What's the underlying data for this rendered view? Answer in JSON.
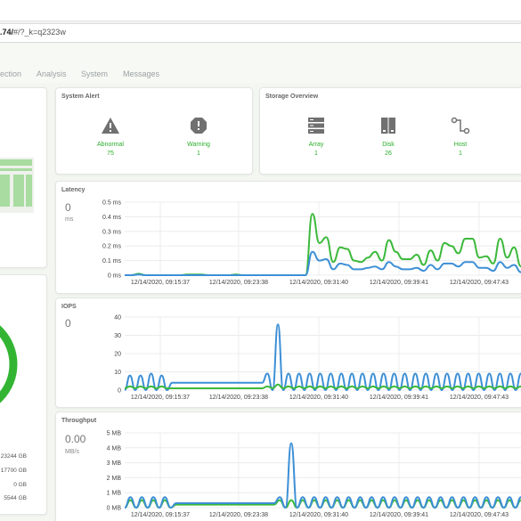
{
  "browser": {
    "url_bold": ".74/",
    "url_rest": "#/?_k=q2323w"
  },
  "nav": {
    "items": [
      "ection",
      "Analysis",
      "System",
      "Messages"
    ]
  },
  "system_alert": {
    "title": "System Alert",
    "items": [
      {
        "label": "Abnormal",
        "value": "75",
        "icon": "warning-triangle-icon"
      },
      {
        "label": "Warning",
        "value": "1",
        "icon": "alert-circle-icon"
      }
    ]
  },
  "storage_overview": {
    "title": "Storage Overview",
    "items": [
      {
        "label": "Array",
        "value": "1",
        "icon": "array-icon"
      },
      {
        "label": "Disk",
        "value": "26",
        "icon": "disk-icon"
      },
      {
        "label": "Host",
        "value": "1",
        "icon": "host-icon"
      }
    ]
  },
  "capacity": {
    "rows": [
      "23244 GB",
      "17700 GB",
      "0 GB",
      "5544 GB"
    ]
  },
  "colors": {
    "green": "#3cb93c",
    "blue": "#3d8fd6",
    "accent": "#2aae2a"
  },
  "latency": {
    "title": "Latency",
    "value": "0",
    "unit": "ms",
    "chart_data": {
      "type": "line",
      "y_ticks": [
        "0.5 ms",
        "0.4 ms",
        "0.3 ms",
        "0.2 ms",
        "0.1 ms",
        "0 ms"
      ],
      "ylim": [
        0,
        0.5
      ],
      "x_ticks": [
        "12/14/2020, 09:15:37",
        "12/14/2020, 09:23:38",
        "12/14/2020, 09:31:40",
        "12/14/2020, 09:39:41",
        "12/14/2020, 09:47:43"
      ],
      "series": [
        {
          "color": "#3cb93c",
          "values": [
            0,
            0,
            0.01,
            0,
            0,
            0,
            0,
            0,
            0,
            0.005,
            0.005,
            0.005,
            0,
            0,
            0,
            0,
            0.005,
            0,
            0,
            0,
            0,
            0,
            0,
            0,
            0,
            0,
            0,
            0.42,
            0.22,
            0.26,
            0.09,
            0.19,
            0.18,
            0.1,
            0.09,
            0.12,
            0.16,
            0.1,
            0.24,
            0.16,
            0.11,
            0.11,
            0.14,
            0.07,
            0.17,
            0.1,
            0.22,
            0.2,
            0.15,
            0.25,
            0.25,
            0.12,
            0.13,
            0.08,
            0.25,
            0.12,
            0.19,
            0.06
          ]
        },
        {
          "color": "#3d8fd6",
          "values": [
            0,
            0,
            0.005,
            0,
            0,
            0,
            0,
            0,
            0,
            0,
            0,
            0,
            0,
            0,
            0,
            0,
            0,
            0,
            0,
            0,
            0,
            0,
            0,
            0,
            0,
            0,
            0,
            0.16,
            0.1,
            0.11,
            0.04,
            0.08,
            0.07,
            0.04,
            0.04,
            0.05,
            0.06,
            0.04,
            0.09,
            0.06,
            0.04,
            0.04,
            0.05,
            0.03,
            0.07,
            0.04,
            0.08,
            0.08,
            0.06,
            0.09,
            0.09,
            0.05,
            0.05,
            0.03,
            0.09,
            0.05,
            0.07,
            0.02
          ]
        }
      ]
    }
  },
  "iops": {
    "title": "IOPS",
    "value": "0",
    "chart_data": {
      "type": "line",
      "y_ticks": [
        "40",
        "30",
        "20",
        "10",
        "0"
      ],
      "ylim": [
        0,
        40
      ],
      "x_ticks": [
        "12/14/2020, 09:15:37",
        "12/14/2020, 09:23:38",
        "12/14/2020, 09:31:40",
        "12/14/2020, 09:39:41",
        "12/14/2020, 09:47:43"
      ],
      "series": [
        {
          "color": "#3d8fd6",
          "values": [
            0,
            8,
            0,
            8,
            0,
            9,
            0,
            8,
            0,
            4,
            4,
            4,
            4,
            4,
            4,
            4,
            4,
            4,
            4,
            4,
            4,
            4,
            4,
            4,
            4,
            4,
            4,
            9,
            0,
            36,
            0,
            9,
            0,
            9,
            0,
            9,
            0,
            9,
            0,
            9,
            0,
            9,
            0,
            9,
            0,
            9,
            0,
            9,
            0,
            9,
            0,
            9,
            0,
            9,
            0,
            9,
            0,
            9,
            0,
            9,
            0,
            9,
            0,
            9,
            0,
            9,
            0,
            9,
            0,
            9,
            0,
            9,
            0,
            9,
            0,
            9
          ]
        },
        {
          "color": "#3cb93c",
          "values": [
            1,
            2,
            1,
            2,
            1,
            2,
            1,
            2,
            1,
            1,
            1,
            1,
            1,
            1,
            1,
            1,
            1,
            1,
            1,
            1,
            1,
            1,
            1,
            1,
            1,
            1,
            1,
            2,
            1,
            3,
            1,
            2,
            1,
            2,
            1,
            2,
            1,
            2,
            1,
            2,
            1,
            2,
            1,
            2,
            1,
            2,
            1,
            2,
            1,
            2,
            1,
            2,
            1,
            2,
            1,
            2,
            1,
            2,
            1,
            2,
            1,
            2,
            1,
            2,
            1,
            2,
            1,
            2,
            1,
            2,
            1,
            2,
            1,
            2,
            1,
            2
          ]
        }
      ]
    }
  },
  "throughput": {
    "title": "Throughput",
    "value": "0.00",
    "unit": "MB/s",
    "chart_data": {
      "type": "line",
      "y_ticks": [
        "5 MB",
        "4 MB",
        "3 MB",
        "2 MB",
        "1 MB",
        "0 MB"
      ],
      "ylim": [
        0,
        5
      ],
      "x_ticks": [
        "12/14/2020, 09:15:37",
        "12/14/2020, 09:23:38",
        "12/14/2020, 09:31:40",
        "12/14/2020, 09:39:41",
        "12/14/2020, 09:47:43"
      ],
      "series": [
        {
          "color": "#3cb93c",
          "values": [
            0,
            0.5,
            0,
            0.5,
            0,
            0.5,
            0,
            0.5,
            0,
            0.2,
            0.2,
            0.2,
            0.2,
            0.2,
            0.2,
            0.2,
            0.2,
            0.2,
            0.2,
            0.2,
            0.2,
            0.2,
            0.2,
            0.2,
            0.2,
            0.2,
            0.2,
            0.5,
            0,
            0.5,
            0,
            0.5,
            0,
            0.5,
            0,
            0.5,
            0,
            0.5,
            0,
            0.5,
            0,
            0.5,
            0,
            0.5,
            0,
            0.5,
            0,
            0.5,
            0,
            0.5,
            0,
            0.5,
            0,
            0.5,
            0,
            0.5,
            0,
            0.5,
            0,
            0.5,
            0,
            0.5,
            0,
            0.5,
            0,
            0.5,
            0,
            0.5,
            0,
            0.5
          ]
        },
        {
          "color": "#3d8fd6",
          "values": [
            0,
            0.7,
            0,
            0.7,
            0,
            0.7,
            0,
            0.7,
            0,
            0.3,
            0.3,
            0.3,
            0.3,
            0.3,
            0.3,
            0.3,
            0.3,
            0.3,
            0.3,
            0.3,
            0.3,
            0.3,
            0.3,
            0.3,
            0.3,
            0.3,
            0.3,
            0.7,
            0,
            4.3,
            0,
            0.7,
            0,
            0.7,
            0,
            0.7,
            0,
            0.7,
            0,
            0.7,
            0,
            0.7,
            0,
            0.7,
            0,
            0.7,
            0,
            0.7,
            0,
            0.7,
            0,
            0.7,
            0,
            0.7,
            0,
            0.7,
            0,
            0.7,
            0,
            0.7,
            0,
            0.7,
            0,
            0.7,
            0,
            0.7,
            0,
            0.7,
            0,
            0.7
          ]
        }
      ]
    }
  }
}
